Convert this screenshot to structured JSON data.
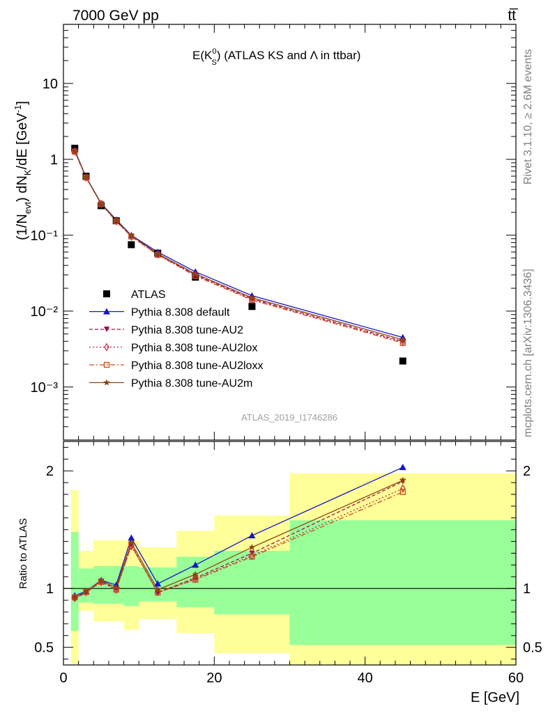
{
  "header": {
    "energy_label": "7000 GeV pp",
    "process_label": "tt̅"
  },
  "side": {
    "rivet_label": "Rivet 3.1.10, ≥ 2.6M events",
    "mcplots_label": "mcplots.cern.ch [arXiv:1306.3436]"
  },
  "plot": {
    "title_main": "E(K",
    "title_sup": "0",
    "title_sub": "S",
    "title_rest": ") (ATLAS KS and Λ in ttbar)",
    "analysis_id": "ATLAS_2019_I1746286",
    "ylabel_ratio": "Ratio to ATLAS",
    "xlabel": "E [GeV]"
  },
  "chart_data": {
    "type": "scatter",
    "x_label": "E [GeV]",
    "y_label": "(1/N_evt) dN_K/dE [GeV^-1]",
    "xlim": [
      0,
      60
    ],
    "ylim_main": [
      0.0002,
      60
    ],
    "y_scale_main": "log",
    "ylim_ratio": [
      0.35,
      2.25
    ],
    "legend_position": "lower-left",
    "x_ticks": [
      0,
      20,
      40,
      60
    ],
    "y_ticks_main": [
      {
        "value": 10,
        "label": "10"
      },
      {
        "value": 1,
        "label": "1"
      },
      {
        "value": 0.1,
        "label": "10⁻¹"
      },
      {
        "value": 0.01,
        "label": "10⁻²"
      },
      {
        "value": 0.001,
        "label": "10⁻³"
      }
    ],
    "y_ticks_ratio": [
      0.5,
      1,
      2
    ],
    "bin_edges": [
      1,
      2,
      4,
      6,
      8,
      10,
      15,
      20,
      30,
      60
    ],
    "ratio_band_inner": [
      [
        0.64,
        1.48
      ],
      [
        0.88,
        1.17
      ],
      [
        0.87,
        1.19
      ],
      [
        0.87,
        1.19
      ],
      [
        0.85,
        1.19
      ],
      [
        0.89,
        1.18
      ],
      [
        0.84,
        1.27
      ],
      [
        0.78,
        1.32
      ],
      [
        0.52,
        1.58
      ]
    ],
    "ratio_band_outer": [
      [
        0.36,
        1.84
      ],
      [
        0.81,
        1.32
      ],
      [
        0.72,
        1.41
      ],
      [
        0.72,
        1.41
      ],
      [
        0.65,
        1.41
      ],
      [
        0.74,
        1.35
      ],
      [
        0.62,
        1.49
      ],
      [
        0.45,
        1.62
      ],
      [
        0.35,
        1.98
      ]
    ],
    "x": [
      1.5,
      3,
      5,
      7,
      9,
      12.5,
      17.5,
      25,
      45
    ],
    "series": [
      {
        "name": "ATLAS",
        "marker": "square",
        "color": "#000000",
        "dash": "none",
        "is_data": true,
        "values": [
          1.4,
          0.6,
          0.245,
          0.155,
          0.075,
          0.058,
          0.028,
          0.0115,
          0.0022
        ]
      },
      {
        "name": "Pythia 8.308 default",
        "marker": "triangle-up",
        "color": "#1414c8",
        "dash": "none",
        "values": [
          1.32,
          0.585,
          0.262,
          0.16,
          0.1,
          0.06,
          0.033,
          0.016,
          0.0045
        ],
        "ratio": [
          0.94,
          0.975,
          1.07,
          1.03,
          1.43,
          1.04,
          1.2,
          1.45,
          2.03
        ]
      },
      {
        "name": "Pythia 8.308 tune-AU2",
        "marker": "triangle-down",
        "color": "#a01050",
        "dash": "5,3",
        "values": [
          1.28,
          0.58,
          0.26,
          0.154,
          0.097,
          0.056,
          0.03,
          0.0145,
          0.004
        ],
        "ratio": [
          0.915,
          0.965,
          1.06,
          0.995,
          1.37,
          0.965,
          1.09,
          1.3,
          1.91
        ]
      },
      {
        "name": "Pythia 8.308 tune-AU2lox",
        "marker": "diamond",
        "color": "#c02040",
        "dash": "2,3",
        "values": [
          1.27,
          0.575,
          0.258,
          0.153,
          0.096,
          0.056,
          0.0295,
          0.0142,
          0.0039
        ],
        "ratio": [
          0.92,
          0.97,
          1.055,
          0.99,
          1.36,
          0.97,
          1.08,
          1.28,
          1.85
        ]
      },
      {
        "name": "Pythia 8.308 tune-AU2loxx",
        "marker": "square-open",
        "color": "#d04818",
        "dash": "7,3,2,3",
        "values": [
          1.26,
          0.575,
          0.256,
          0.152,
          0.096,
          0.055,
          0.029,
          0.014,
          0.0038
        ],
        "ratio": [
          0.925,
          0.97,
          1.055,
          0.99,
          1.37,
          0.965,
          1.075,
          1.27,
          1.82
        ]
      },
      {
        "name": "Pythia 8.308 tune-AU2m",
        "marker": "star",
        "color": "#8b4513",
        "dash": "none",
        "values": [
          1.28,
          0.58,
          0.26,
          0.156,
          0.099,
          0.057,
          0.031,
          0.015,
          0.0042
        ],
        "ratio": [
          0.92,
          0.975,
          1.065,
          1.01,
          1.39,
          0.99,
          1.12,
          1.35,
          1.92
        ]
      }
    ]
  }
}
